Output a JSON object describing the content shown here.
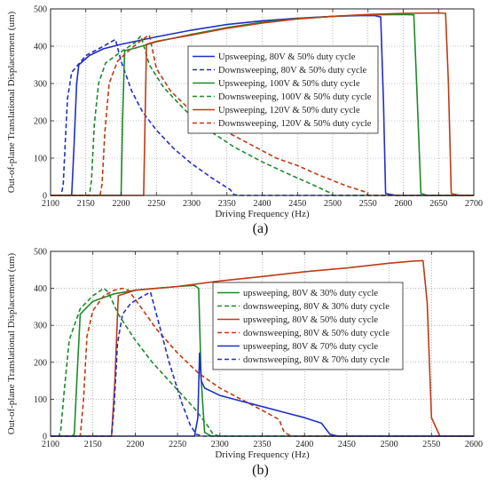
{
  "chart_data": [
    {
      "type": "line",
      "panel_label": "(a)",
      "xlabel": "Driving Frequency (Hz)",
      "ylabel": "Out-of-plane Translational Displacement (um)",
      "xlim": [
        2100,
        2700
      ],
      "ylim": [
        0,
        500
      ],
      "xticks": [
        2100,
        2150,
        2200,
        2250,
        2300,
        2350,
        2400,
        2450,
        2500,
        2550,
        2600,
        2650,
        2700
      ],
      "yticks": [
        0,
        100,
        200,
        300,
        400,
        500
      ],
      "grid": true,
      "legend_position": "center-right",
      "series": [
        {
          "name": "Upsweeping, 80V & 50% duty cycle",
          "color": "#1f2fc8",
          "dash": "solid",
          "x": [
            2100,
            2120,
            2130,
            2133,
            2137,
            2140,
            2155,
            2175,
            2200,
            2250,
            2300,
            2350,
            2400,
            2450,
            2500,
            2540,
            2560,
            2568,
            2572,
            2575,
            2590,
            2700
          ],
          "y": [
            0,
            0,
            1,
            120,
            300,
            350,
            375,
            393,
            405,
            425,
            443,
            458,
            468,
            475,
            480,
            482,
            482,
            478,
            250,
            5,
            0,
            0
          ]
        },
        {
          "name": "Downsweeping, 80V & 50% duty cycle",
          "color": "#1f2fc8",
          "dash": "dashed",
          "x": [
            2100,
            2115,
            2118,
            2121,
            2124,
            2130,
            2150,
            2175,
            2192,
            2200,
            2215,
            2230,
            2250,
            2275,
            2300,
            2330,
            2355,
            2360,
            2370,
            2700
          ],
          "y": [
            0,
            0,
            30,
            150,
            260,
            330,
            375,
            400,
            418,
            360,
            280,
            225,
            175,
            125,
            85,
            45,
            15,
            2,
            0,
            0
          ]
        },
        {
          "name": "Upsweeping, 100V & 50% duty cycle",
          "color": "#1e8a2a",
          "dash": "solid",
          "x": [
            2100,
            2195,
            2200,
            2202,
            2205,
            2220,
            2250,
            2300,
            2350,
            2400,
            2450,
            2500,
            2550,
            2600,
            2615,
            2620,
            2625,
            2635,
            2700
          ],
          "y": [
            0,
            0,
            0,
            200,
            388,
            395,
            412,
            432,
            450,
            464,
            474,
            480,
            484,
            485,
            484,
            250,
            5,
            0,
            0
          ]
        },
        {
          "name": "Downsweeping, 100V & 50% duty cycle",
          "color": "#1e8a2a",
          "dash": "dashed",
          "x": [
            2100,
            2155,
            2158,
            2162,
            2168,
            2178,
            2200,
            2220,
            2228,
            2240,
            2260,
            2290,
            2320,
            2360,
            2400,
            2440,
            2470,
            2495,
            2500,
            2700
          ],
          "y": [
            0,
            0,
            40,
            190,
            300,
            355,
            385,
            410,
            428,
            350,
            290,
            230,
            180,
            130,
            90,
            55,
            30,
            8,
            0,
            0
          ]
        },
        {
          "name": "Upsweeping, 120V & 50% duty cycle",
          "color": "#c03a14",
          "dash": "solid",
          "x": [
            2100,
            2228,
            2232,
            2234,
            2236,
            2250,
            2300,
            2350,
            2400,
            2450,
            2500,
            2550,
            2600,
            2650,
            2660,
            2664,
            2668,
            2680,
            2700
          ],
          "y": [
            0,
            0,
            0,
            200,
            405,
            413,
            430,
            448,
            462,
            473,
            480,
            485,
            488,
            489,
            488,
            300,
            5,
            0,
            0
          ]
        },
        {
          "name": "Downsweeping, 120V & 50% duty cycle",
          "color": "#c03a14",
          "dash": "dashed",
          "x": [
            2100,
            2170,
            2173,
            2177,
            2183,
            2195,
            2215,
            2230,
            2240,
            2250,
            2270,
            2300,
            2340,
            2380,
            2420,
            2450,
            2480,
            2520,
            2545,
            2550,
            2700
          ],
          "y": [
            0,
            0,
            30,
            170,
            300,
            360,
            395,
            418,
            430,
            340,
            280,
            225,
            180,
            140,
            100,
            80,
            55,
            25,
            10,
            0,
            0
          ]
        }
      ]
    },
    {
      "type": "line",
      "panel_label": "(b)",
      "xlabel": "Driving Frequency (Hz)",
      "ylabel": "Out-of-plane Translational Displacement (um)",
      "xlim": [
        2100,
        2600
      ],
      "ylim": [
        0,
        500
      ],
      "xticks": [
        2100,
        2150,
        2200,
        2250,
        2300,
        2350,
        2400,
        2450,
        2500,
        2550,
        2600
      ],
      "yticks": [
        0,
        100,
        200,
        300,
        400,
        500
      ],
      "grid": true,
      "legend_position": "center-right",
      "series": [
        {
          "name": "upsweeping, 80V & 30% duty cycle",
          "color": "#1e8a2a",
          "dash": "solid",
          "x": [
            2100,
            2125,
            2128,
            2131,
            2135,
            2150,
            2175,
            2200,
            2250,
            2270,
            2275,
            2278,
            2282,
            2290,
            2600
          ],
          "y": [
            0,
            0,
            5,
            150,
            330,
            365,
            385,
            395,
            405,
            408,
            400,
            150,
            10,
            0,
            0
          ]
        },
        {
          "name": "downsweeping, 80V & 30% duty cycle",
          "color": "#1e8a2a",
          "dash": "dashed",
          "x": [
            2100,
            2110,
            2112,
            2116,
            2122,
            2135,
            2150,
            2163,
            2168,
            2180,
            2200,
            2220,
            2250,
            2270,
            2285,
            2292,
            2300,
            2600
          ],
          "y": [
            0,
            0,
            15,
            120,
            260,
            345,
            380,
            400,
            390,
            330,
            260,
            200,
            125,
            75,
            30,
            5,
            0,
            0
          ]
        },
        {
          "name": "upsweeping, 80V & 50% duty cycle",
          "color": "#c03a14",
          "dash": "solid",
          "x": [
            2100,
            2172,
            2176,
            2180,
            2200,
            2250,
            2300,
            2350,
            2400,
            2450,
            2500,
            2530,
            2540,
            2545,
            2550,
            2560,
            2600
          ],
          "y": [
            0,
            0,
            150,
            380,
            395,
            405,
            420,
            432,
            445,
            455,
            468,
            474,
            475,
            360,
            50,
            0,
            0
          ]
        },
        {
          "name": "downsweeping, 80V & 50% duty cycle",
          "color": "#c03a14",
          "dash": "dashed",
          "x": [
            2100,
            2135,
            2139,
            2143,
            2150,
            2163,
            2175,
            2185,
            2192,
            2200,
            2225,
            2250,
            2275,
            2300,
            2325,
            2350,
            2370,
            2376,
            2385,
            2600
          ],
          "y": [
            0,
            0,
            100,
            270,
            340,
            380,
            395,
            400,
            395,
            370,
            290,
            225,
            170,
            130,
            100,
            70,
            45,
            10,
            0,
            0
          ]
        },
        {
          "name": "upsweeping, 80V & 70% duty cycle",
          "color": "#1f2fc8",
          "dash": "solid",
          "x": [
            2100,
            2270,
            2274,
            2276,
            2278,
            2282,
            2300,
            2325,
            2350,
            2375,
            2400,
            2420,
            2425,
            2430,
            2440,
            2600
          ],
          "y": [
            0,
            0,
            50,
            225,
            150,
            130,
            110,
            95,
            80,
            65,
            50,
            35,
            20,
            5,
            0,
            0
          ]
        },
        {
          "name": "downsweeping, 80V & 70% duty cycle",
          "color": "#1f2fc8",
          "dash": "dashed",
          "x": [
            2100,
            2172,
            2175,
            2179,
            2185,
            2195,
            2210,
            2218,
            2225,
            2240,
            2255,
            2265,
            2272,
            2280,
            2600
          ],
          "y": [
            0,
            0,
            80,
            250,
            330,
            360,
            380,
            390,
            330,
            200,
            90,
            30,
            5,
            0,
            0
          ]
        }
      ]
    }
  ]
}
